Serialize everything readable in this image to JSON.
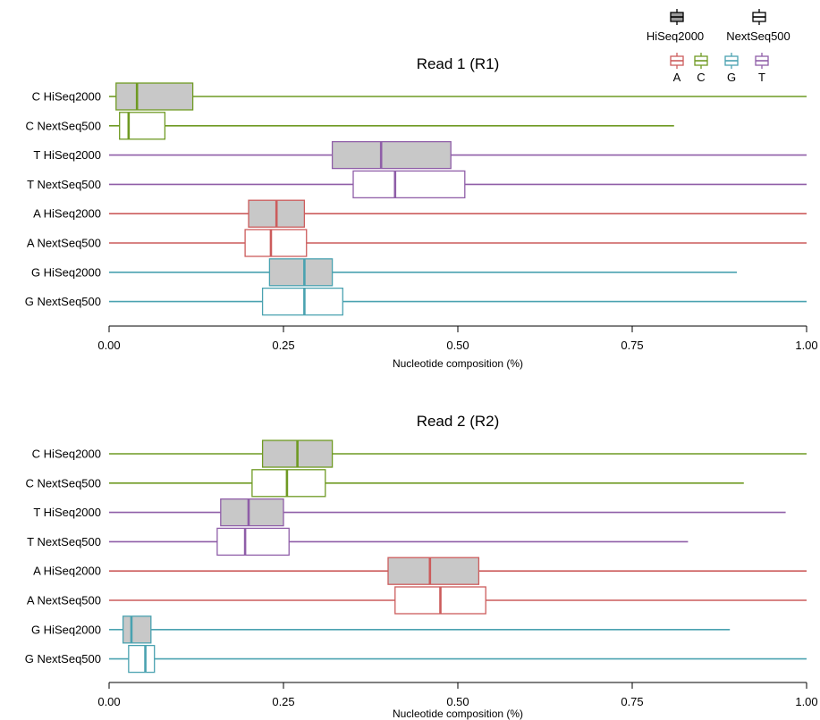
{
  "colors": {
    "A": "#cc5c5c",
    "C": "#6f9a23",
    "G": "#4aa2b0",
    "T": "#8f5ea8",
    "hiseq_fill": "#c8c8c8",
    "nextseq_fill": "#ffffff",
    "axis": "#000000"
  },
  "legend": {
    "instruments": [
      {
        "key": "hiseq",
        "label": "HiSeq2000"
      },
      {
        "key": "nextseq",
        "label": "NextSeq500"
      }
    ],
    "bases": [
      "A",
      "C",
      "G",
      "T"
    ]
  },
  "chart_data": [
    {
      "type": "boxplot",
      "orientation": "horizontal",
      "title": "Read 1 (R1)",
      "xlabel": "Nucleotide composition (%)",
      "xlim": [
        0,
        1
      ],
      "xticks": [
        0,
        0.25,
        0.5,
        0.75,
        1
      ],
      "xtick_labels": [
        "0.00",
        "0.25",
        "0.50",
        "0.75",
        "1.00"
      ],
      "series": [
        {
          "name": "C HiSeq2000",
          "base": "C",
          "instrument": "hiseq",
          "min": 0.0,
          "q1": 0.01,
          "median": 0.04,
          "q3": 0.12,
          "max": 1.0
        },
        {
          "name": "C NextSeq500",
          "base": "C",
          "instrument": "nextseq",
          "min": 0.0,
          "q1": 0.015,
          "median": 0.028,
          "q3": 0.08,
          "max": 0.81
        },
        {
          "name": "T HiSeq2000",
          "base": "T",
          "instrument": "hiseq",
          "min": 0.0,
          "q1": 0.32,
          "median": 0.39,
          "q3": 0.49,
          "max": 1.0
        },
        {
          "name": "T NextSeq500",
          "base": "T",
          "instrument": "nextseq",
          "min": 0.0,
          "q1": 0.35,
          "median": 0.41,
          "q3": 0.51,
          "max": 1.0
        },
        {
          "name": "A HiSeq2000",
          "base": "A",
          "instrument": "hiseq",
          "min": 0.0,
          "q1": 0.2,
          "median": 0.24,
          "q3": 0.28,
          "max": 1.0
        },
        {
          "name": "A NextSeq500",
          "base": "A",
          "instrument": "nextseq",
          "min": 0.0,
          "q1": 0.195,
          "median": 0.232,
          "q3": 0.283,
          "max": 1.0
        },
        {
          "name": "G HiSeq2000",
          "base": "G",
          "instrument": "hiseq",
          "min": 0.0,
          "q1": 0.23,
          "median": 0.28,
          "q3": 0.32,
          "max": 0.9
        },
        {
          "name": "G NextSeq500",
          "base": "G",
          "instrument": "nextseq",
          "min": 0.0,
          "q1": 0.22,
          "median": 0.28,
          "q3": 0.335,
          "max": 1.0
        }
      ]
    },
    {
      "type": "boxplot",
      "orientation": "horizontal",
      "title": "Read 2 (R2)",
      "xlabel": "Nucleotide composition (%)",
      "xlim": [
        0,
        1
      ],
      "xticks": [
        0,
        0.25,
        0.5,
        0.75,
        1
      ],
      "xtick_labels": [
        "0.00",
        "0.25",
        "0.50",
        "0.75",
        "1.00"
      ],
      "series": [
        {
          "name": "C HiSeq2000",
          "base": "C",
          "instrument": "hiseq",
          "min": 0.0,
          "q1": 0.22,
          "median": 0.27,
          "q3": 0.32,
          "max": 1.0
        },
        {
          "name": "C NextSeq500",
          "base": "C",
          "instrument": "nextseq",
          "min": 0.0,
          "q1": 0.205,
          "median": 0.255,
          "q3": 0.31,
          "max": 0.91
        },
        {
          "name": "T HiSeq2000",
          "base": "T",
          "instrument": "hiseq",
          "min": 0.0,
          "q1": 0.16,
          "median": 0.2,
          "q3": 0.25,
          "max": 0.97
        },
        {
          "name": "T NextSeq500",
          "base": "T",
          "instrument": "nextseq",
          "min": 0.0,
          "q1": 0.155,
          "median": 0.195,
          "q3": 0.258,
          "max": 0.83
        },
        {
          "name": "A HiSeq2000",
          "base": "A",
          "instrument": "hiseq",
          "min": 0.0,
          "q1": 0.4,
          "median": 0.46,
          "q3": 0.53,
          "max": 1.0
        },
        {
          "name": "A NextSeq500",
          "base": "A",
          "instrument": "nextseq",
          "min": 0.0,
          "q1": 0.41,
          "median": 0.475,
          "q3": 0.54,
          "max": 1.0
        },
        {
          "name": "G HiSeq2000",
          "base": "G",
          "instrument": "hiseq",
          "min": 0.0,
          "q1": 0.02,
          "median": 0.032,
          "q3": 0.06,
          "max": 0.89
        },
        {
          "name": "G NextSeq500",
          "base": "G",
          "instrument": "nextseq",
          "min": 0.0,
          "q1": 0.028,
          "median": 0.052,
          "q3": 0.065,
          "max": 1.0
        }
      ]
    }
  ]
}
